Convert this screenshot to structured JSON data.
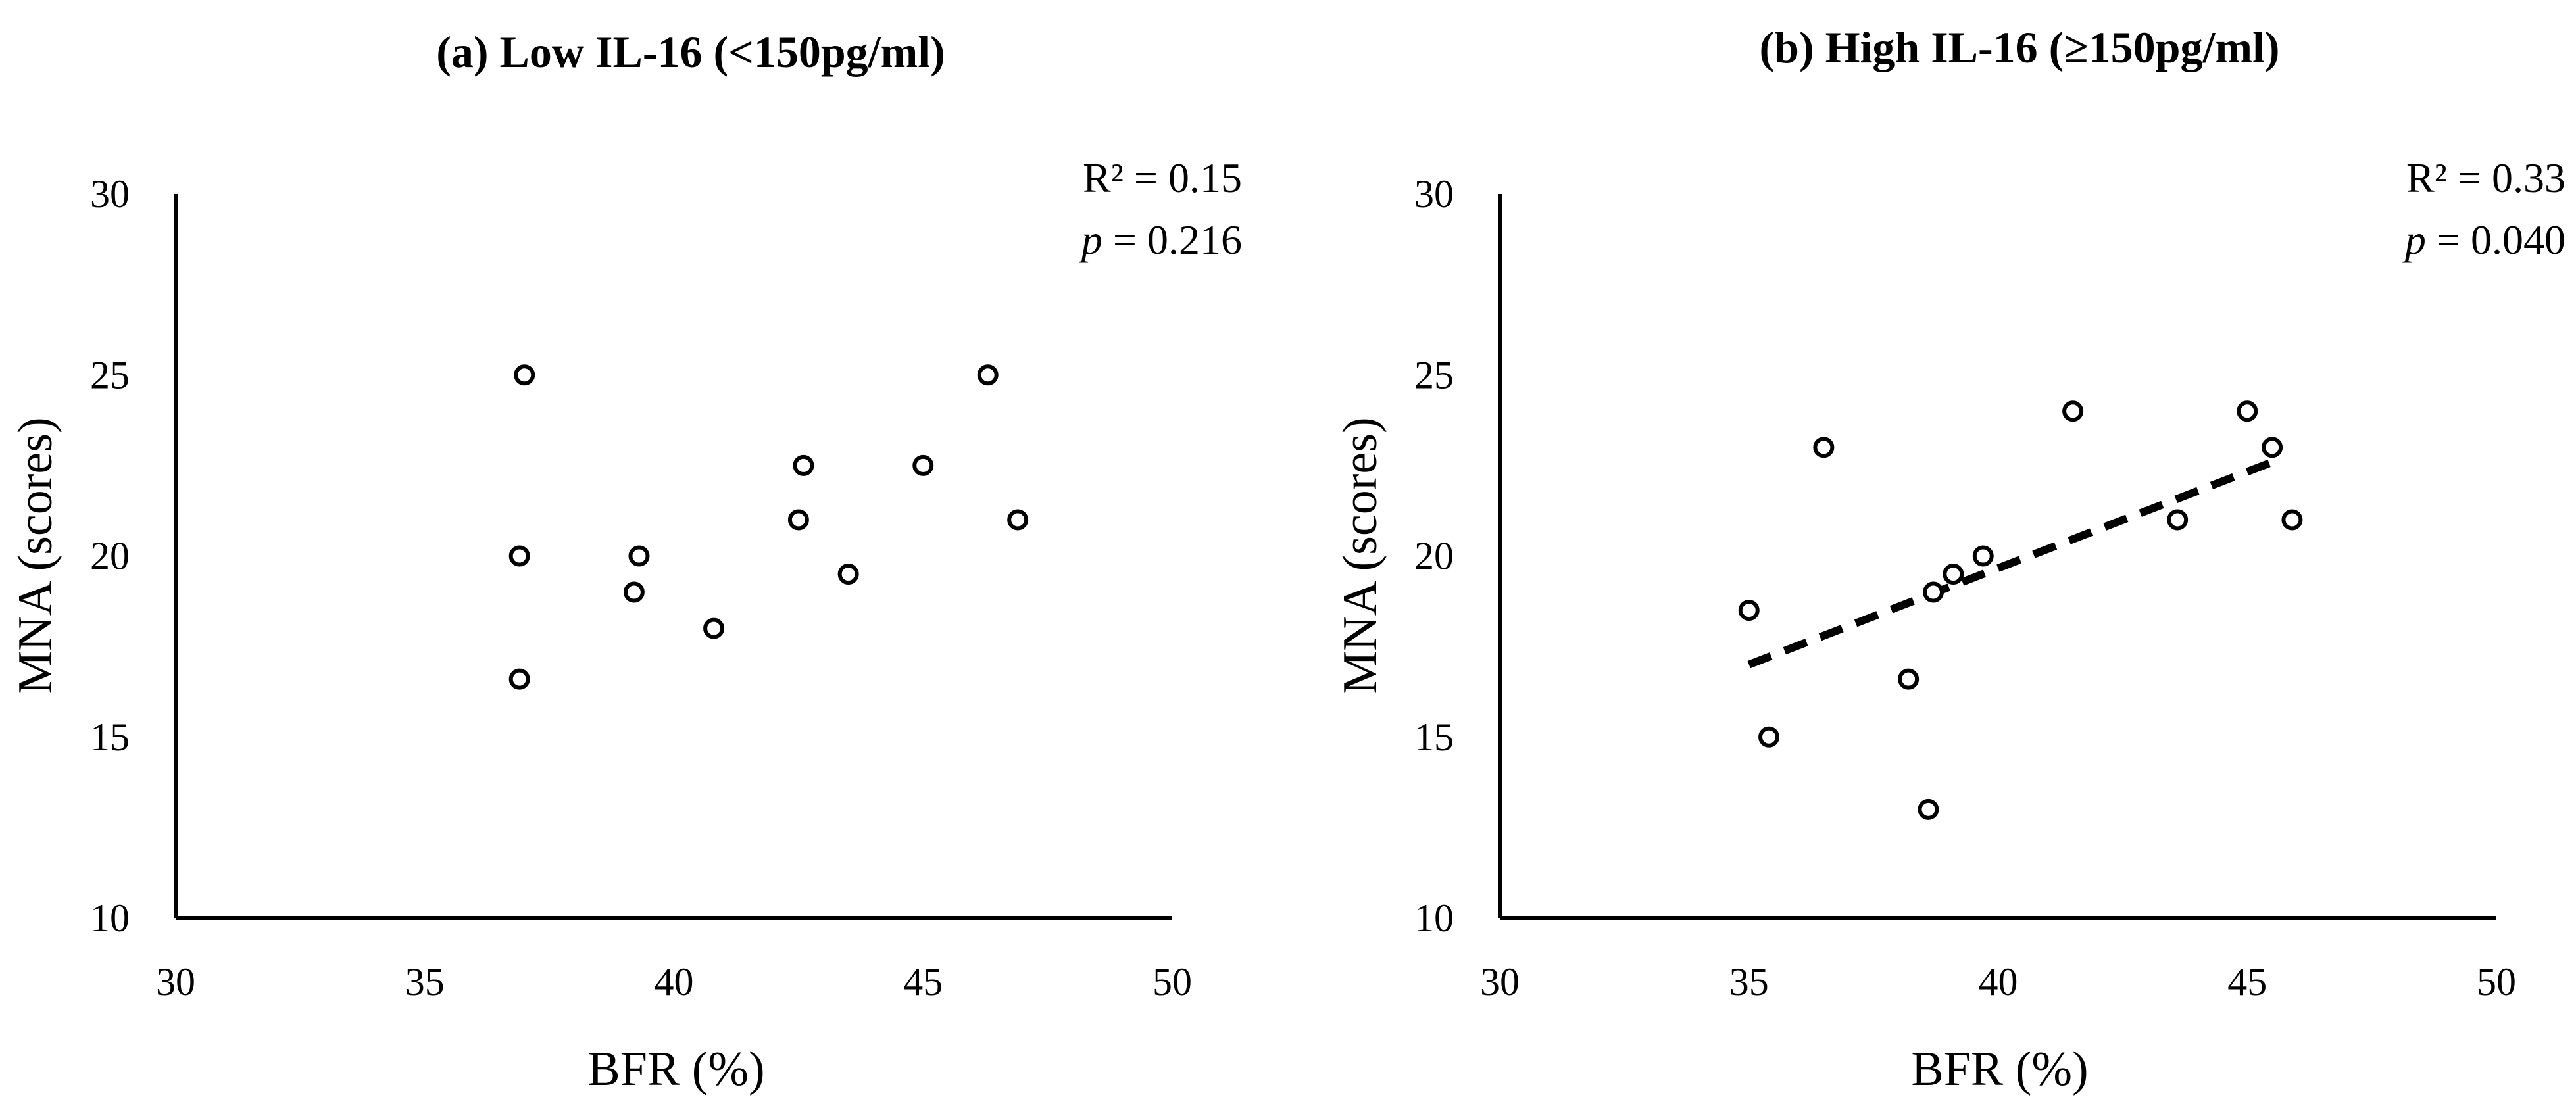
{
  "chart_data": [
    {
      "type": "scatter",
      "title": "(a) Low IL-16 (<150pg/ml)",
      "xlabel": "BFR (%)",
      "ylabel": "MNA (scores)",
      "xlim": [
        30,
        50
      ],
      "ylim": [
        10,
        30
      ],
      "xticks": [
        "30",
        "35",
        "40",
        "45",
        "50"
      ],
      "yticks": [
        "10",
        "15",
        "20",
        "25",
        "30"
      ],
      "r2_label": "R² = 0.15",
      "p_symbol": "p",
      "p_value": " = 0.216",
      "trendline": null,
      "points": [
        {
          "x": 37.0,
          "y": 25.0
        },
        {
          "x": 36.9,
          "y": 20.0
        },
        {
          "x": 36.9,
          "y": 16.6
        },
        {
          "x": 39.2,
          "y": 19.0
        },
        {
          "x": 39.3,
          "y": 20.0
        },
        {
          "x": 40.8,
          "y": 18.0
        },
        {
          "x": 42.5,
          "y": 21.0
        },
        {
          "x": 42.6,
          "y": 22.5
        },
        {
          "x": 43.5,
          "y": 19.5
        },
        {
          "x": 45.0,
          "y": 22.5
        },
        {
          "x": 46.3,
          "y": 25.0
        },
        {
          "x": 46.9,
          "y": 21.0
        }
      ]
    },
    {
      "type": "scatter",
      "title": "(b) High IL-16 (≥150pg/ml)",
      "xlabel": "BFR (%)",
      "ylabel": "MNA (scores)",
      "xlim": [
        30,
        50
      ],
      "ylim": [
        10,
        30
      ],
      "xticks": [
        "30",
        "35",
        "40",
        "45",
        "50"
      ],
      "yticks": [
        "10",
        "15",
        "20",
        "25",
        "30"
      ],
      "r2_label": "R² = 0.33",
      "p_symbol": "p",
      "p_value": " = 0.040",
      "trendline": {
        "x": [
          35.0,
          45.7
        ],
        "y": [
          17.0,
          22.7
        ]
      },
      "points": [
        {
          "x": 35.0,
          "y": 18.5
        },
        {
          "x": 35.4,
          "y": 15.0
        },
        {
          "x": 36.5,
          "y": 23.0
        },
        {
          "x": 38.2,
          "y": 16.6
        },
        {
          "x": 38.6,
          "y": 13.0
        },
        {
          "x": 38.7,
          "y": 19.0
        },
        {
          "x": 39.1,
          "y": 19.5
        },
        {
          "x": 39.7,
          "y": 20.0
        },
        {
          "x": 41.5,
          "y": 24.0
        },
        {
          "x": 43.6,
          "y": 21.0
        },
        {
          "x": 45.0,
          "y": 24.0
        },
        {
          "x": 45.5,
          "y": 23.0
        },
        {
          "x": 45.9,
          "y": 21.0
        }
      ]
    }
  ]
}
